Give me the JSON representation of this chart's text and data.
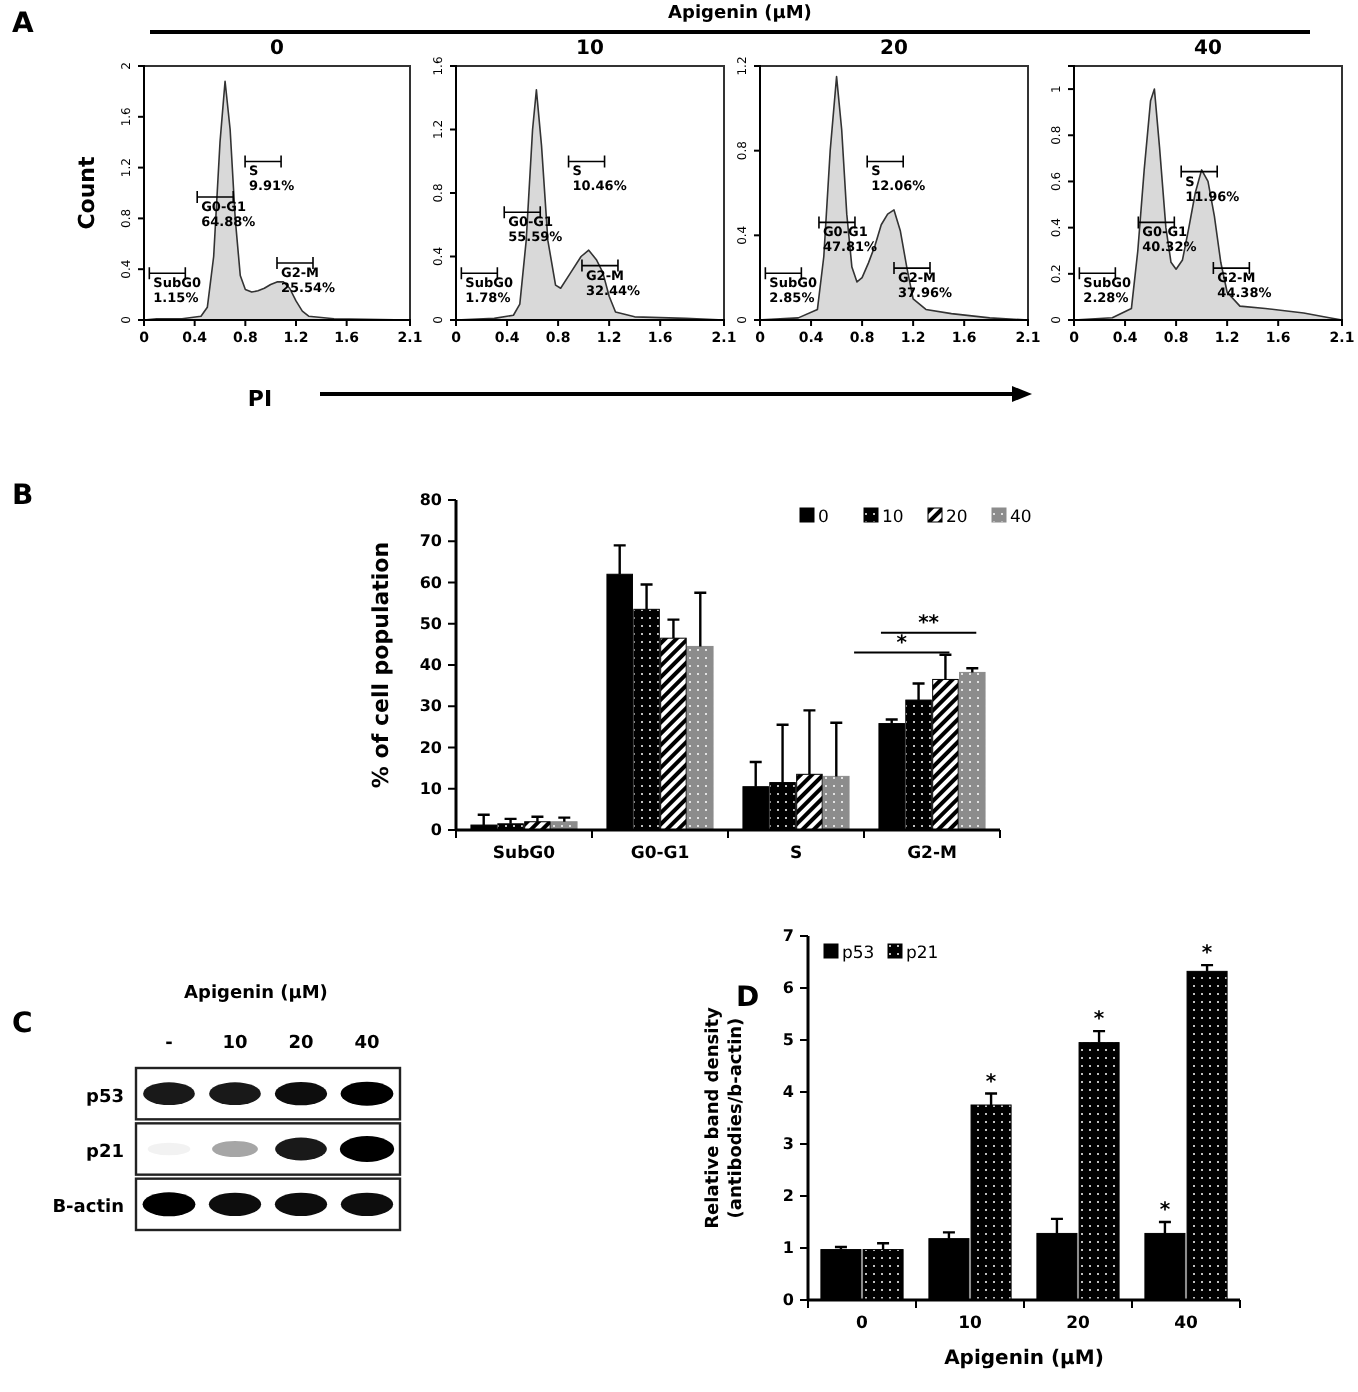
{
  "chart_data": [
    {
      "type": "area",
      "title": "0",
      "xlabel": "PI",
      "ylabel": "Count",
      "color": "#d9d9d9",
      "xlim": [
        0,
        2.1
      ],
      "ylim": [
        0,
        2
      ],
      "xticks": [
        0,
        0.4,
        0.8,
        1.2,
        1.6,
        2.1
      ],
      "yticks": [
        0,
        0.4,
        0.8,
        1.2,
        1.6,
        2
      ],
      "x": [
        0,
        0.1,
        0.3,
        0.45,
        0.5,
        0.55,
        0.6,
        0.64,
        0.68,
        0.72,
        0.76,
        0.8,
        0.85,
        0.9,
        0.95,
        1.0,
        1.05,
        1.1,
        1.15,
        1.2,
        1.25,
        1.3,
        1.5,
        2.1
      ],
      "values": [
        0,
        0.01,
        0.01,
        0.03,
        0.1,
        0.5,
        1.4,
        1.88,
        1.5,
        0.8,
        0.35,
        0.24,
        0.22,
        0.23,
        0.25,
        0.28,
        0.3,
        0.3,
        0.25,
        0.15,
        0.07,
        0.03,
        0.01,
        0
      ],
      "annotations": [
        "A",
        "Apigenin (μM)",
        "SubG0\n1.15%",
        "G0-G1\n64.88%",
        "S\n9.91%",
        "G2-M\n25.54%"
      ]
    },
    {
      "type": "area",
      "title": "10",
      "color": "#d9d9d9",
      "xlim": [
        0,
        2.1
      ],
      "ylim": [
        0,
        1.6
      ],
      "xticks": [
        0,
        0.4,
        0.8,
        1.2,
        1.6,
        2.1
      ],
      "yticks": [
        0,
        0.4,
        0.8,
        1.2,
        1.6
      ],
      "x": [
        0,
        0.3,
        0.45,
        0.5,
        0.55,
        0.6,
        0.63,
        0.67,
        0.72,
        0.78,
        0.82,
        0.9,
        0.98,
        1.04,
        1.1,
        1.15,
        1.2,
        1.25,
        1.4,
        1.8,
        2.1
      ],
      "values": [
        0,
        0.01,
        0.03,
        0.1,
        0.5,
        1.2,
        1.45,
        1.1,
        0.5,
        0.22,
        0.2,
        0.3,
        0.4,
        0.44,
        0.38,
        0.3,
        0.15,
        0.05,
        0.02,
        0.01,
        0
      ],
      "annotations": [
        "SubG0\n1.78%",
        "G0-G1\n55.59%",
        "S\n10.46%",
        "G2-M\n32.44%"
      ]
    },
    {
      "type": "area",
      "title": "20",
      "color": "#d9d9d9",
      "xlim": [
        0,
        2.1
      ],
      "ylim": [
        0,
        1.2
      ],
      "xticks": [
        0,
        0.4,
        0.8,
        1.2,
        1.6,
        2.1
      ],
      "yticks": [
        0,
        0.4,
        0.8,
        1.2
      ],
      "x": [
        0,
        0.3,
        0.45,
        0.5,
        0.55,
        0.6,
        0.64,
        0.68,
        0.72,
        0.76,
        0.8,
        0.85,
        0.9,
        0.95,
        1.0,
        1.05,
        1.1,
        1.15,
        1.2,
        1.3,
        1.5,
        1.8,
        2.1
      ],
      "values": [
        0,
        0.01,
        0.05,
        0.3,
        0.8,
        1.15,
        0.9,
        0.5,
        0.25,
        0.18,
        0.2,
        0.27,
        0.35,
        0.45,
        0.5,
        0.52,
        0.42,
        0.25,
        0.1,
        0.05,
        0.03,
        0.01,
        0
      ],
      "annotations": [
        "SubG0\n2.85%",
        "G0-G1\n47.81%",
        "S\n12.06%",
        "G2-M\n37.96%"
      ]
    },
    {
      "type": "area",
      "title": "40",
      "color": "#d9d9d9",
      "xlim": [
        0,
        2.1
      ],
      "ylim": [
        0,
        1.1
      ],
      "xticks": [
        0,
        0.4,
        0.8,
        1.2,
        1.6,
        2.1
      ],
      "yticks": [
        0,
        0.2,
        0.4,
        0.6,
        0.8,
        1
      ],
      "x": [
        0,
        0.3,
        0.45,
        0.5,
        0.55,
        0.6,
        0.63,
        0.67,
        0.72,
        0.76,
        0.8,
        0.85,
        0.9,
        0.95,
        1.0,
        1.05,
        1.1,
        1.15,
        1.2,
        1.3,
        1.5,
        1.8,
        2.0,
        2.1
      ],
      "values": [
        0,
        0.01,
        0.05,
        0.3,
        0.65,
        0.95,
        1.0,
        0.75,
        0.4,
        0.25,
        0.22,
        0.26,
        0.4,
        0.55,
        0.65,
        0.6,
        0.45,
        0.25,
        0.12,
        0.06,
        0.05,
        0.03,
        0.01,
        0
      ],
      "annotations": [
        "SubG0\n2.28%",
        "G0-G1\n40.32%",
        "S\n11.96%",
        "G2-M\n44.38%"
      ]
    },
    {
      "type": "bar",
      "ylabel": "% of cell population",
      "categories": [
        "SubG0",
        "G0-G1",
        "S",
        "G2-M"
      ],
      "ylim": [
        0,
        80
      ],
      "yticks": [
        0,
        10,
        20,
        30,
        40,
        50,
        60,
        70,
        80
      ],
      "legend": "top right",
      "series": [
        {
          "name": "0",
          "color": "#000000",
          "values": [
            1.2,
            62,
            10.5,
            25.8
          ],
          "errors": [
            2.5,
            7,
            6,
            1
          ]
        },
        {
          "name": "10",
          "color": "#000000",
          "values": [
            1.5,
            53.5,
            11.5,
            31.5
          ],
          "errors": [
            1.2,
            6,
            14,
            4
          ]
        },
        {
          "name": "20",
          "color": "#000000",
          "values": [
            2,
            46.5,
            13.5,
            36.5
          ],
          "errors": [
            1.2,
            4.5,
            15.5,
            6
          ]
        },
        {
          "name": "40",
          "color": "#8c8c8c",
          "values": [
            2,
            44.5,
            13,
            38.2
          ],
          "errors": [
            1,
            13,
            13,
            1
          ]
        }
      ],
      "annotations": [
        "B",
        "*",
        "**"
      ]
    },
    {
      "type": "other",
      "title": "Apigenin (μM)",
      "categories": [
        "-",
        "10",
        "20",
        "40"
      ],
      "y_categories": [
        "p53",
        "p21",
        "B-actin"
      ],
      "annotations": [
        "C"
      ]
    },
    {
      "type": "bar",
      "xlabel": "Apigenin (μM)",
      "ylabel": "Relative band density\n(antibodies/b-actin)",
      "categories": [
        "0",
        "10",
        "20",
        "40"
      ],
      "ylim": [
        0,
        7
      ],
      "yticks": [
        0,
        1,
        2,
        3,
        4,
        5,
        6,
        7
      ],
      "legend": "top left",
      "series": [
        {
          "name": "p53",
          "color": "#000000",
          "values": [
            0.97,
            1.18,
            1.28,
            1.28
          ],
          "errors": [
            0.05,
            0.12,
            0.28,
            0.22
          ]
        },
        {
          "name": "p21",
          "color": "#000000",
          "values": [
            0.97,
            3.75,
            4.95,
            6.32
          ],
          "errors": [
            0.12,
            0.22,
            0.22,
            0.12
          ]
        }
      ],
      "annotations": [
        "D",
        "*",
        "*",
        "*",
        "*"
      ]
    }
  ]
}
